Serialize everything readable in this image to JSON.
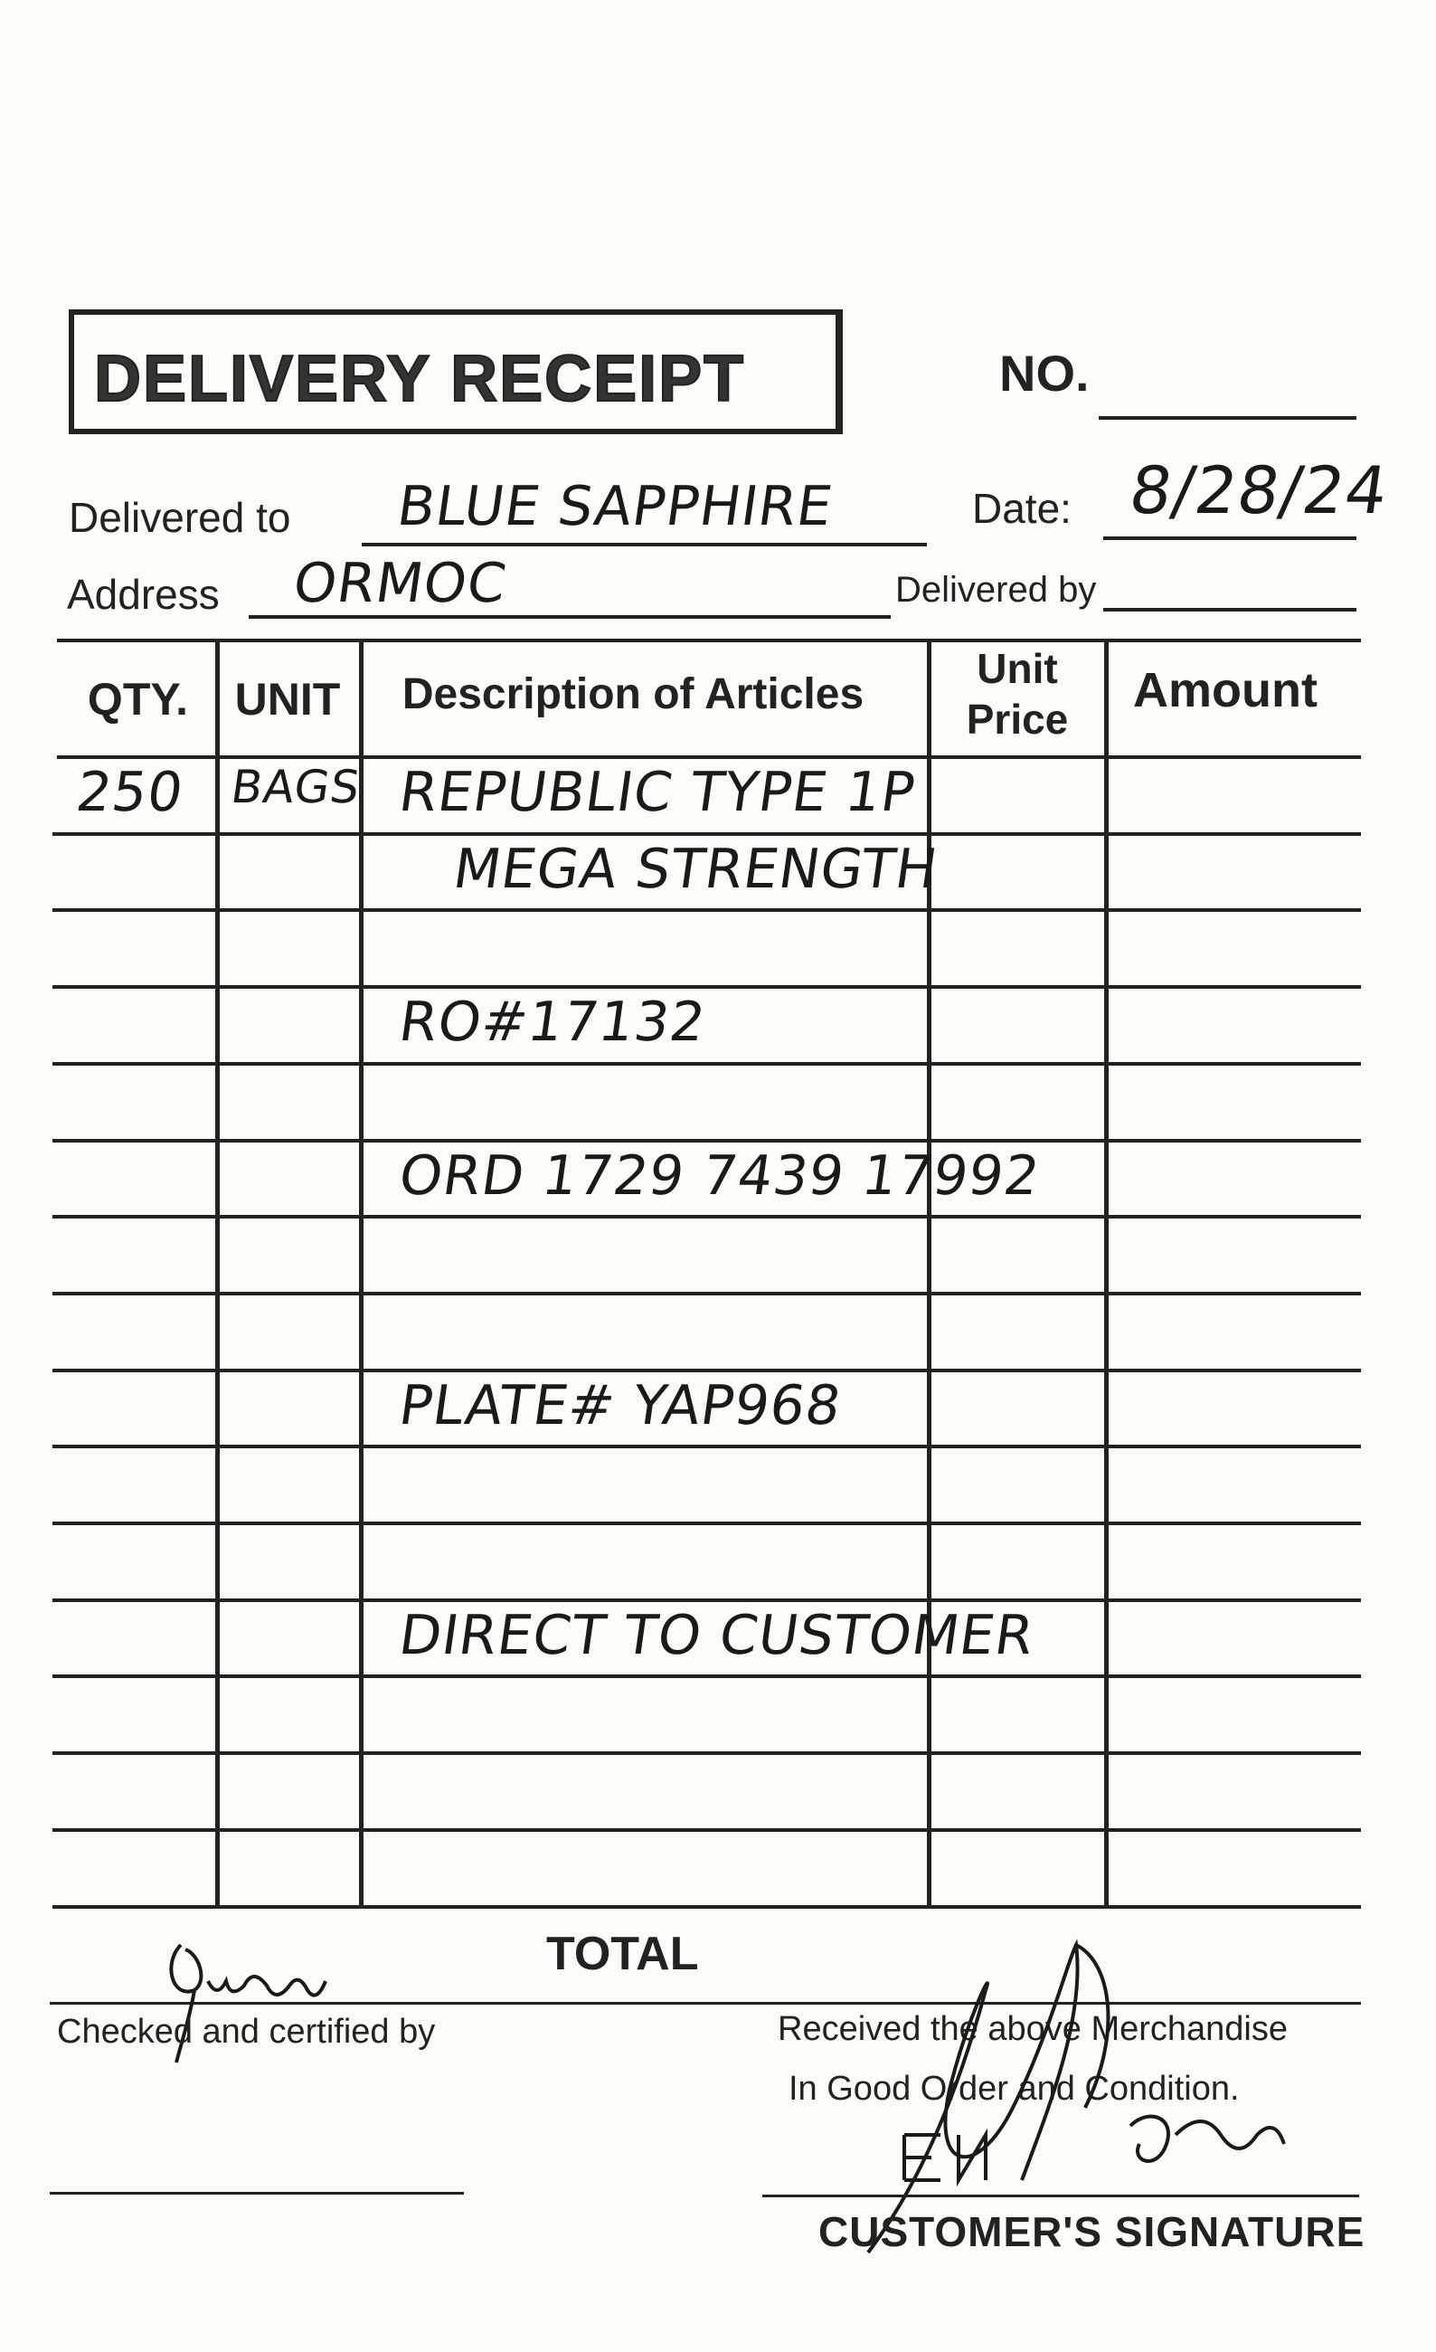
{
  "header": {
    "title": "DELIVERY RECEIPT",
    "no_label": "NO.",
    "no_value": "",
    "delivered_to_label": "Delivered to",
    "delivered_to_value": "BLUE SAPPHIRE",
    "date_label": "Date:",
    "date_value": "8/28/24",
    "address_label": "Address",
    "address_value": "ORMOC",
    "delivered_by_label": "Delivered by",
    "delivered_by_value": ""
  },
  "table": {
    "columns": [
      "QTY.",
      "UNIT",
      "Description of Articles",
      "Unit Price",
      "Amount"
    ],
    "rows": [
      {
        "qty": "250",
        "unit": "BAGS",
        "description": "REPUBLIC TYPE 1P",
        "unit_price": "",
        "amount": ""
      },
      {
        "qty": "",
        "unit": "",
        "description": "MEGA STRENGTH",
        "unit_price": "",
        "amount": ""
      },
      {
        "qty": "",
        "unit": "",
        "description": "",
        "unit_price": "",
        "amount": ""
      },
      {
        "qty": "",
        "unit": "",
        "description": "RO#17132",
        "unit_price": "",
        "amount": ""
      },
      {
        "qty": "",
        "unit": "",
        "description": "",
        "unit_price": "",
        "amount": ""
      },
      {
        "qty": "",
        "unit": "",
        "description": "ORD 1729 7439 17992",
        "unit_price": "",
        "amount": ""
      },
      {
        "qty": "",
        "unit": "",
        "description": "",
        "unit_price": "",
        "amount": ""
      },
      {
        "qty": "",
        "unit": "",
        "description": "",
        "unit_price": "",
        "amount": ""
      },
      {
        "qty": "",
        "unit": "",
        "description": "PLATE# YAP968",
        "unit_price": "",
        "amount": ""
      },
      {
        "qty": "",
        "unit": "",
        "description": "",
        "unit_price": "",
        "amount": ""
      },
      {
        "qty": "",
        "unit": "",
        "description": "",
        "unit_price": "",
        "amount": ""
      },
      {
        "qty": "",
        "unit": "",
        "description": "DIRECT TO CUSTOMER",
        "unit_price": "",
        "amount": ""
      },
      {
        "qty": "",
        "unit": "",
        "description": "",
        "unit_price": "",
        "amount": ""
      },
      {
        "qty": "",
        "unit": "",
        "description": "",
        "unit_price": "",
        "amount": ""
      },
      {
        "qty": "",
        "unit": "",
        "description": "",
        "unit_price": "",
        "amount": ""
      }
    ],
    "total_label": "TOTAL",
    "total_value": ""
  },
  "footer": {
    "checked_label": "Checked and certified by",
    "received_line1": "Received the above Merchandise",
    "received_line2": "In Good Order and Condition.",
    "customer_signature_label": "CUSTOMER'S SIGNATURE"
  }
}
